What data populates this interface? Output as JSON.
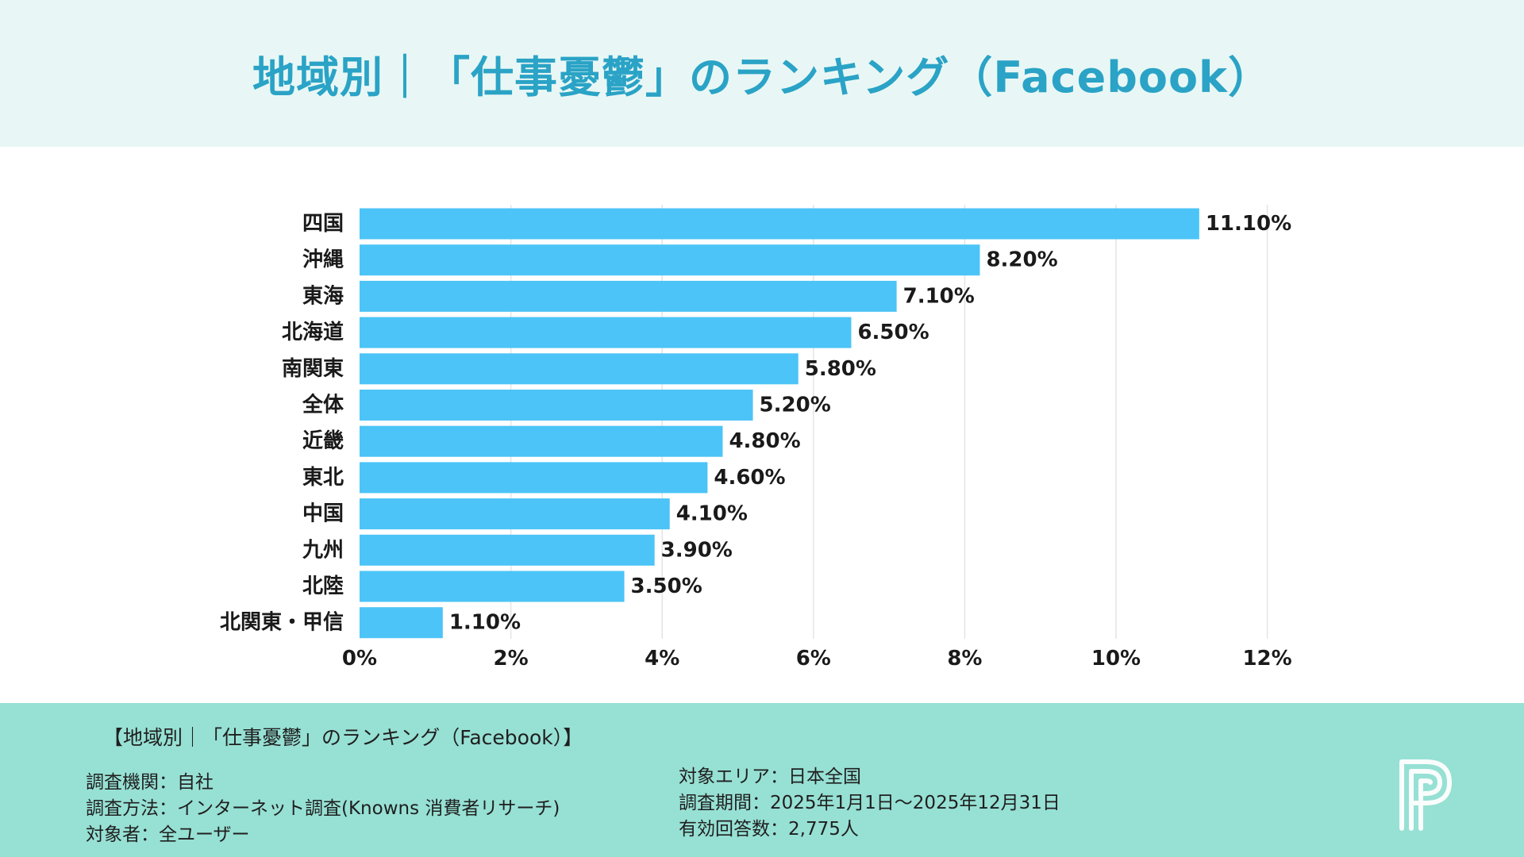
{
  "header": {
    "title": "地域別｜「仕事憂鬱」のランキング（Facebook）"
  },
  "chart_data": {
    "type": "bar",
    "orientation": "horizontal",
    "title": "地域別｜「仕事憂鬱」のランキング（Facebook）",
    "xlabel": "",
    "ylabel": "",
    "xlim": [
      0,
      12
    ],
    "x_ticks": [
      0,
      2,
      4,
      6,
      8,
      10,
      12
    ],
    "x_tick_labels": [
      "0%",
      "2%",
      "4%",
      "6%",
      "8%",
      "10%",
      "12%"
    ],
    "grid": true,
    "categories": [
      "四国",
      "沖縄",
      "東海",
      "北海道",
      "南関東",
      "全体",
      "近畿",
      "東北",
      "中国",
      "九州",
      "北陸",
      "北関東・甲信"
    ],
    "values": [
      11.1,
      8.2,
      7.1,
      6.5,
      5.8,
      5.2,
      4.8,
      4.6,
      4.1,
      3.9,
      3.5,
      1.1
    ],
    "value_labels": [
      "11.10%",
      "8.20%",
      "7.10%",
      "6.50%",
      "5.80%",
      "5.20%",
      "4.80%",
      "4.60%",
      "4.10%",
      "3.90%",
      "3.50%",
      "1.10%"
    ],
    "bar_color": "#4cc4f7"
  },
  "footer": {
    "title": "【地域別｜「仕事憂鬱」のランキング（Facebook）】",
    "left_lines": [
      "調査機関：自社",
      "調査方法：インターネット調査(Knowns 消費者リサーチ)",
      "対象者：全ユーザー"
    ],
    "right_lines": [
      "対象エリア：日本全国",
      "調査期間：2025年1月1日～2025年12月31日",
      "有効回答数：2,775人"
    ]
  },
  "logo": {
    "icon": "p-logo-icon"
  },
  "colors": {
    "header_bg": "#e8f7f5",
    "title": "#2aa3c6",
    "footer_bg": "#97e0d4",
    "bar": "#4cc4f7"
  }
}
